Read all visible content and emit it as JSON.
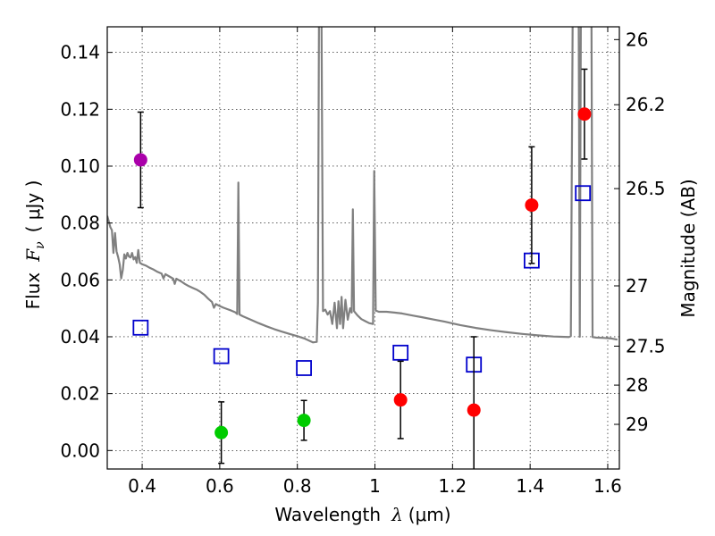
{
  "chart_data": {
    "type": "scatter",
    "xlabel": "Wavelength  λ (μm)",
    "ylabel": "Flux  F_ν  ( μJy )",
    "ylabel_parts": {
      "flux": "Flux",
      "symbol": "F",
      "subscript": "ν",
      "unit": "( μJy )"
    },
    "xlabel_parts": {
      "text": "Wavelength",
      "symbol": "λ",
      "unit": "(μm)"
    },
    "y2label": "Magnitude (AB)",
    "xlim": [
      0.31,
      1.63
    ],
    "ylim": [
      -0.0065,
      0.149
    ],
    "grid": true,
    "x_ticks": [
      0.4,
      0.6,
      0.8,
      1.0,
      1.2,
      1.4,
      1.6
    ],
    "x_tick_labels": [
      "0.4",
      "0.6",
      "0.8",
      "1",
      "1.2",
      "1.4",
      "1.6"
    ],
    "y_ticks": [
      0.0,
      0.02,
      0.04,
      0.06,
      0.08,
      0.1,
      0.12,
      0.14
    ],
    "y_tick_labels": [
      "0.00",
      "0.02",
      "0.04",
      "0.06",
      "0.08",
      "0.10",
      "0.12",
      "0.14"
    ],
    "y2_ticks": [
      {
        "flux": 0.1445,
        "label": "26"
      },
      {
        "flux": 0.1216,
        "label": "26.2"
      },
      {
        "flux": 0.0921,
        "label": "26.5"
      },
      {
        "flux": 0.0579,
        "label": "27"
      },
      {
        "flux": 0.0367,
        "label": "27.5"
      },
      {
        "flux": 0.023,
        "label": "28"
      },
      {
        "flux": 0.0092,
        "label": "29"
      }
    ],
    "series": [
      {
        "name": "model_spectrum",
        "kind": "line",
        "color": "#808080",
        "points": [
          [
            0.31,
            0.0825
          ],
          [
            0.318,
            0.0785
          ],
          [
            0.322,
            0.0775
          ],
          [
            0.326,
            0.0695
          ],
          [
            0.33,
            0.0765
          ],
          [
            0.334,
            0.07
          ],
          [
            0.338,
            0.068
          ],
          [
            0.342,
            0.0655
          ],
          [
            0.346,
            0.0605
          ],
          [
            0.35,
            0.0635
          ],
          [
            0.354,
            0.069
          ],
          [
            0.358,
            0.0675
          ],
          [
            0.362,
            0.0695
          ],
          [
            0.366,
            0.0682
          ],
          [
            0.37,
            0.0679
          ],
          [
            0.374,
            0.0695
          ],
          [
            0.378,
            0.0672
          ],
          [
            0.382,
            0.068
          ],
          [
            0.386,
            0.066
          ],
          [
            0.39,
            0.0705
          ],
          [
            0.394,
            0.066
          ],
          [
            0.4,
            0.0655
          ],
          [
            0.41,
            0.065
          ],
          [
            0.42,
            0.0642
          ],
          [
            0.43,
            0.0636
          ],
          [
            0.44,
            0.0628
          ],
          [
            0.45,
            0.0622
          ],
          [
            0.455,
            0.0605
          ],
          [
            0.46,
            0.062
          ],
          [
            0.47,
            0.0612
          ],
          [
            0.48,
            0.0604
          ],
          [
            0.484,
            0.0586
          ],
          [
            0.488,
            0.0604
          ],
          [
            0.5,
            0.0595
          ],
          [
            0.51,
            0.0586
          ],
          [
            0.52,
            0.0578
          ],
          [
            0.53,
            0.0572
          ],
          [
            0.54,
            0.0566
          ],
          [
            0.55,
            0.0558
          ],
          [
            0.56,
            0.0548
          ],
          [
            0.57,
            0.0534
          ],
          [
            0.58,
            0.0522
          ],
          [
            0.585,
            0.0502
          ],
          [
            0.59,
            0.0515
          ],
          [
            0.6,
            0.0508
          ],
          [
            0.61,
            0.0502
          ],
          [
            0.62,
            0.0497
          ],
          [
            0.63,
            0.0492
          ],
          [
            0.64,
            0.0486
          ],
          [
            0.645,
            0.048
          ],
          [
            0.648,
            0.0942
          ],
          [
            0.651,
            0.0478
          ],
          [
            0.66,
            0.0472
          ],
          [
            0.68,
            0.046
          ],
          [
            0.7,
            0.0448
          ],
          [
            0.72,
            0.0437
          ],
          [
            0.74,
            0.0427
          ],
          [
            0.76,
            0.0418
          ],
          [
            0.78,
            0.041
          ],
          [
            0.8,
            0.0402
          ],
          [
            0.82,
            0.0393
          ],
          [
            0.84,
            0.038
          ],
          [
            0.85,
            0.0382
          ],
          [
            0.853,
            0.052
          ],
          [
            0.856,
            0.16
          ],
          [
            0.862,
            0.16
          ],
          [
            0.866,
            0.049
          ],
          [
            0.872,
            0.0495
          ],
          [
            0.878,
            0.0478
          ],
          [
            0.884,
            0.049
          ],
          [
            0.89,
            0.0445
          ],
          [
            0.896,
            0.052
          ],
          [
            0.902,
            0.043
          ],
          [
            0.906,
            0.0525
          ],
          [
            0.91,
            0.0445
          ],
          [
            0.914,
            0.054
          ],
          [
            0.918,
            0.043
          ],
          [
            0.924,
            0.053
          ],
          [
            0.93,
            0.046
          ],
          [
            0.936,
            0.05
          ],
          [
            0.94,
            0.0485
          ],
          [
            0.943,
            0.0848
          ],
          [
            0.946,
            0.049
          ],
          [
            0.955,
            0.0475
          ],
          [
            0.965,
            0.0462
          ],
          [
            0.975,
            0.0455
          ],
          [
            0.985,
            0.0448
          ],
          [
            0.995,
            0.0445
          ],
          [
            0.998,
            0.0983
          ],
          [
            1.002,
            0.0492
          ],
          [
            1.01,
            0.0488
          ],
          [
            1.03,
            0.0488
          ],
          [
            1.05,
            0.0485
          ],
          [
            1.07,
            0.0482
          ],
          [
            1.1,
            0.0474
          ],
          [
            1.12,
            0.0469
          ],
          [
            1.15,
            0.0461
          ],
          [
            1.18,
            0.0453
          ],
          [
            1.22,
            0.0441
          ],
          [
            1.26,
            0.0431
          ],
          [
            1.3,
            0.0423
          ],
          [
            1.34,
            0.0416
          ],
          [
            1.38,
            0.041
          ],
          [
            1.42,
            0.0405
          ],
          [
            1.46,
            0.0401
          ],
          [
            1.5,
            0.0399
          ],
          [
            1.505,
            0.0402
          ],
          [
            1.51,
            0.16
          ],
          [
            1.515,
            0.16
          ],
          [
            1.525,
            0.16
          ],
          [
            1.528,
            0.04
          ],
          [
            1.531,
            0.16
          ],
          [
            1.545,
            0.16
          ],
          [
            1.552,
            0.16
          ],
          [
            1.558,
            0.16
          ],
          [
            1.561,
            0.0399
          ],
          [
            1.57,
            0.0397
          ],
          [
            1.59,
            0.0396
          ],
          [
            1.61,
            0.0394
          ],
          [
            1.625,
            0.039
          ]
        ]
      },
      {
        "name": "model_photometry",
        "kind": "open-square",
        "color": "#0000cc",
        "points": [
          [
            0.396,
            0.0432
          ],
          [
            0.604,
            0.0332
          ],
          [
            0.817,
            0.029
          ],
          [
            1.066,
            0.0344
          ],
          [
            1.255,
            0.0302
          ],
          [
            1.404,
            0.0668
          ],
          [
            1.536,
            0.0905
          ]
        ]
      },
      {
        "name": "detections_magenta",
        "kind": "filled-circle",
        "color": "#aa00aa",
        "points": [
          [
            0.396,
            0.1022,
            0.0168
          ]
        ]
      },
      {
        "name": "detections_green",
        "kind": "filled-circle",
        "color": "#00cc00",
        "points": [
          [
            0.604,
            0.0063,
            0.0108
          ],
          [
            0.817,
            0.0106,
            0.007
          ]
        ]
      },
      {
        "name": "detections_red",
        "kind": "filled-circle",
        "color": "#ff0000",
        "points": [
          [
            1.066,
            0.0178,
            0.0136
          ],
          [
            1.255,
            0.0142,
            0.0258
          ],
          [
            1.404,
            0.0863,
            0.0205
          ],
          [
            1.54,
            0.1183,
            0.0158
          ]
        ]
      }
    ]
  }
}
